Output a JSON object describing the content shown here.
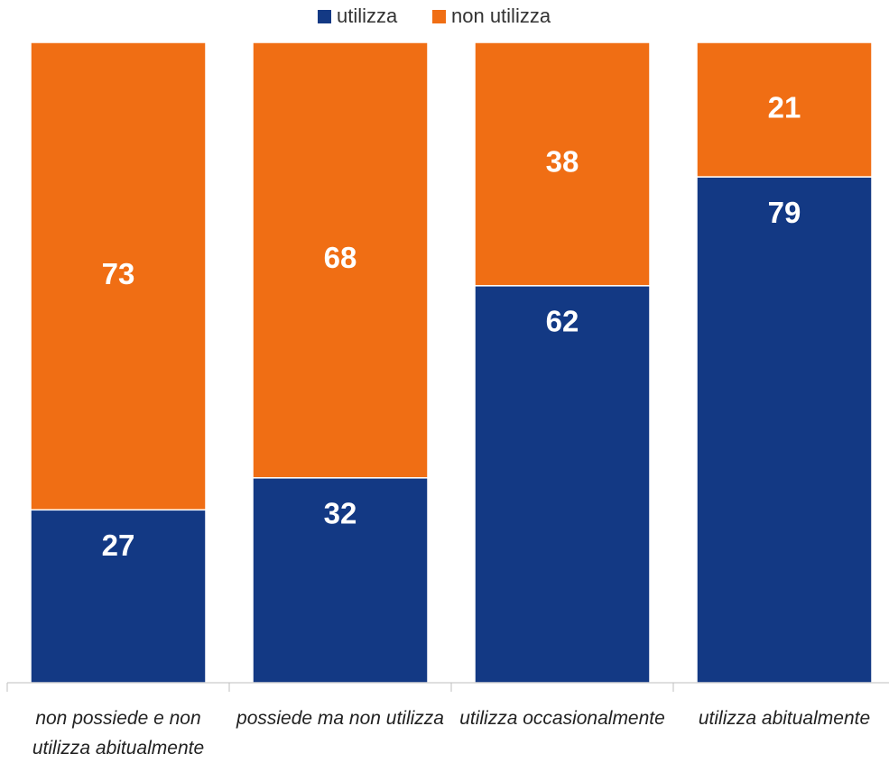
{
  "chart_data": {
    "type": "stacked_bar",
    "categories": [
      "non possiede e non utilizza abitualmente",
      "possiede ma non utilizza",
      "utilizza occasionalmente",
      "utilizza abitualmente"
    ],
    "series": [
      {
        "name": "utilizza",
        "color": "#133984",
        "values": [
          27,
          32,
          62,
          79
        ]
      },
      {
        "name": "non utilizza",
        "color": "#f06e14",
        "values": [
          73,
          68,
          38,
          21
        ]
      }
    ],
    "ylim": [
      0,
      100
    ],
    "legend": "top"
  }
}
